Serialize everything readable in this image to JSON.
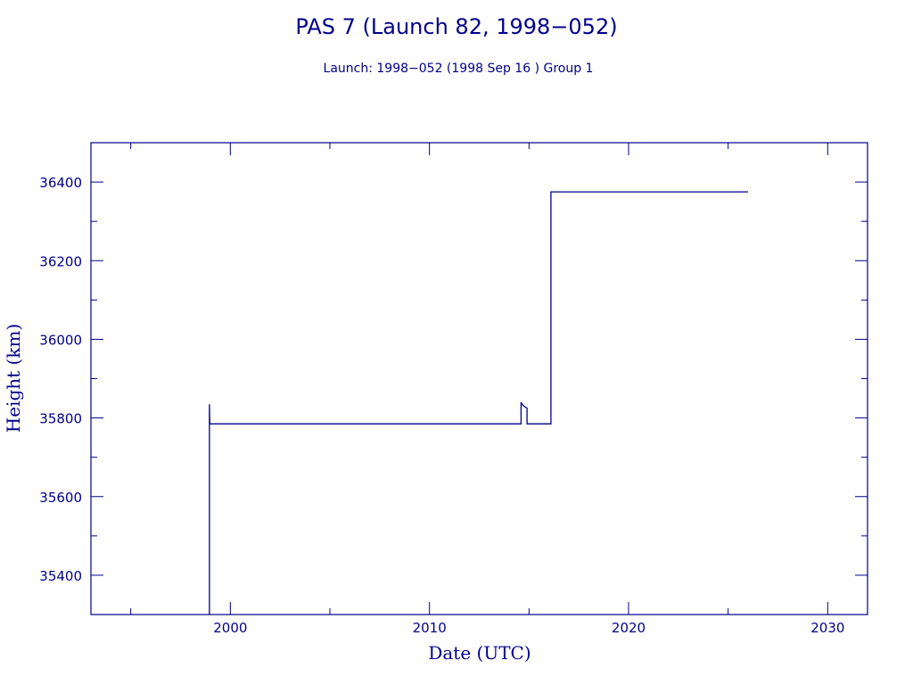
{
  "colors": {
    "ink": "#00008b",
    "background": "#ffffff"
  },
  "chart_data": {
    "type": "line",
    "title": "PAS 7 (Launch 82, 1998−052)",
    "subtitle": "Launch: 1998−052  (1998 Sep 16 )  Group 1",
    "xlabel": "Date (UTC)",
    "ylabel": "Height (km)",
    "xlim": [
      1993.0,
      2032.0
    ],
    "ylim": [
      35300,
      36500
    ],
    "xticks": [
      2000,
      2010,
      2020,
      2030
    ],
    "yticks": [
      35400,
      35600,
      35800,
      36000,
      36200,
      36400
    ],
    "grid": false,
    "series": [
      {
        "x": [
          1998.95,
          1998.95,
          1998.97,
          1999.05,
          2003.0,
          2008.0,
          2012.0,
          2014.6,
          2014.6,
          2014.65,
          2014.75,
          2014.9,
          2014.9,
          2015.3,
          2016.1,
          2016.1,
          2018.0,
          2022.0,
          2025.0,
          2026.0
        ],
        "y": [
          35300,
          35835,
          35785,
          35785,
          35785,
          35785,
          35785,
          35785,
          35840,
          35835,
          35830,
          35825,
          35785,
          35785,
          35785,
          36375,
          36375,
          36375,
          36375,
          36375
        ]
      }
    ]
  }
}
